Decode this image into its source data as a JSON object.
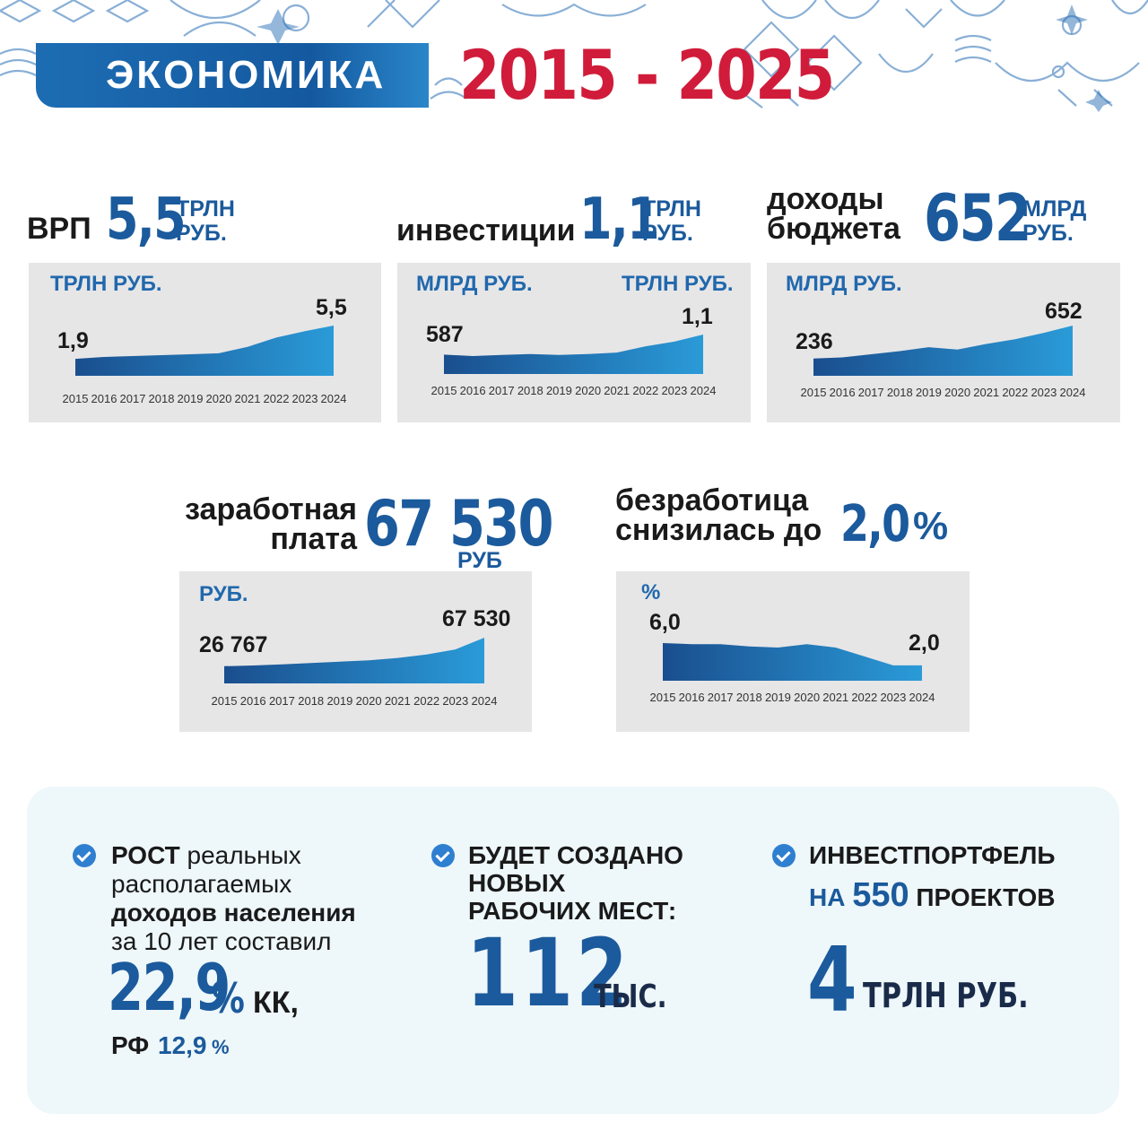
{
  "header": {
    "title": "ЭКОНОМИКА",
    "years": "2015 - 2025"
  },
  "headlines": {
    "grp": {
      "label": "ВРП",
      "value": "5,5",
      "unit_line1": "ТРЛН",
      "unit_line2": "РУБ."
    },
    "investment": {
      "label": "инвестиции",
      "value": "1,1",
      "unit_line1": "ТРЛН",
      "unit_line2": "РУБ."
    },
    "budget": {
      "label_line1": "доходы",
      "label_line2": "бюджета",
      "value": "652",
      "unit_line1": "МЛРД",
      "unit_line2": "РУБ."
    },
    "salary": {
      "label_line1": "заработная",
      "label_line2": "плата",
      "value": "67 530",
      "unit": "РУБ"
    },
    "unemployment": {
      "label_line1": "безработица",
      "label_line2": "снизилась до",
      "value": "2,0",
      "unit": "%"
    }
  },
  "chart_data": [
    {
      "type": "area",
      "id": "grp",
      "unit": "ТРЛН РУБ.",
      "x": [
        "2015",
        "2016",
        "2017",
        "2018",
        "2019",
        "2020",
        "2021",
        "2022",
        "2023",
        "2024"
      ],
      "values": [
        1.9,
        2.1,
        2.2,
        2.3,
        2.4,
        2.5,
        3.2,
        4.2,
        4.9,
        5.5
      ],
      "labels": [
        {
          "index": 0,
          "text": "1,9"
        },
        {
          "index": 9,
          "text": "5,5"
        }
      ],
      "ylim": [
        0,
        5.5
      ],
      "colors": [
        "#1a4e8e",
        "#2a9bd8"
      ]
    },
    {
      "type": "area",
      "id": "investment",
      "unit_left": "МЛРД РУБ.",
      "unit_right": "ТРЛН РУБ.",
      "x": [
        "2015",
        "2016",
        "2017",
        "2018",
        "2019",
        "2020",
        "2021",
        "2022",
        "2023",
        "2024"
      ],
      "values": [
        0.587,
        0.55,
        0.58,
        0.6,
        0.58,
        0.6,
        0.64,
        0.8,
        0.92,
        1.1
      ],
      "labels": [
        {
          "index": 0,
          "text": "587"
        },
        {
          "index": 9,
          "text": "1,1"
        }
      ],
      "ylim": [
        0,
        1.1
      ],
      "colors": [
        "#1a4e8e",
        "#2a9bd8"
      ]
    },
    {
      "type": "area",
      "id": "budget",
      "unit": "МЛРД РУБ.",
      "x": [
        "2015",
        "2016",
        "2017",
        "2018",
        "2019",
        "2020",
        "2021",
        "2022",
        "2023",
        "2024"
      ],
      "values": [
        236,
        250,
        290,
        330,
        380,
        350,
        420,
        480,
        560,
        652
      ],
      "labels": [
        {
          "index": 0,
          "text": "236"
        },
        {
          "index": 9,
          "text": "652"
        }
      ],
      "ylim": [
        0,
        652
      ],
      "colors": [
        "#1a4e8e",
        "#2a9bd8"
      ]
    },
    {
      "type": "area",
      "id": "salary",
      "unit": "РУБ.",
      "x": [
        "2015",
        "2016",
        "2017",
        "2018",
        "2019",
        "2020",
        "2021",
        "2022",
        "2023",
        "2024"
      ],
      "values": [
        26767,
        27800,
        29500,
        31200,
        33300,
        35200,
        38600,
        43400,
        50700,
        67530
      ],
      "labels": [
        {
          "index": 0,
          "text": "26 767"
        },
        {
          "index": 9,
          "text": "67 530"
        }
      ],
      "ylim": [
        0,
        67530
      ],
      "colors": [
        "#1a4e8e",
        "#2a9bd8"
      ]
    },
    {
      "type": "area",
      "id": "unemployment",
      "unit": "%",
      "x": [
        "2015",
        "2016",
        "2017",
        "2018",
        "2019",
        "2020",
        "2021",
        "2022",
        "2023",
        "2024"
      ],
      "values": [
        6.0,
        5.8,
        5.8,
        5.4,
        5.2,
        5.8,
        5.2,
        3.6,
        2.0,
        2.0
      ],
      "labels": [
        {
          "index": 0,
          "text": "6,0"
        },
        {
          "index": 9,
          "text": "2,0"
        }
      ],
      "ylim": [
        0,
        6.0
      ],
      "colors": [
        "#1a4e8e",
        "#2a9bd8"
      ]
    }
  ],
  "bottom": {
    "income": {
      "bold1": "РОСТ",
      "text1": "реальных",
      "text2": "располагаемых",
      "bold2": "доходов населения",
      "text3": "за 10 лет составил",
      "value": "22,9",
      "percent": "%",
      "region": "КК,",
      "rf_label": "РФ",
      "rf_value": "12,9",
      "rf_percent": "%"
    },
    "jobs": {
      "line1": "БУДЕТ СОЗДАНО",
      "line2": "НОВЫХ",
      "line3": "РАБОЧИХ МЕСТ:",
      "value": "112",
      "unit": "ТЫС."
    },
    "portfolio": {
      "line1": "ИНВЕСТПОРТФЕЛЬ",
      "prefix": "НА",
      "number": "550",
      "suffix": "ПРОЕКТОВ",
      "value": "4",
      "unit": "ТРЛН РУБ."
    }
  }
}
